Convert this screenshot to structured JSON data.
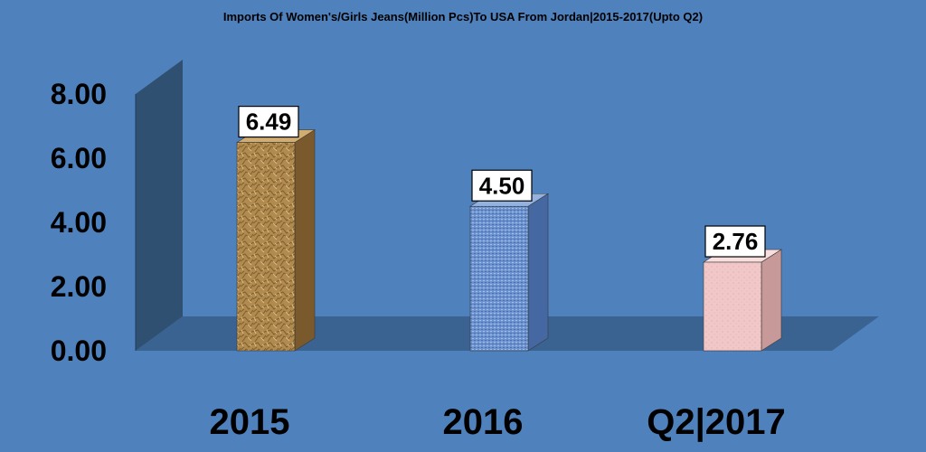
{
  "chart_data": {
    "type": "bar",
    "title": "Imports Of Women's/Girls Jeans(Million Pcs)To USA From Jordan|2015-2017(Upto Q2)",
    "categories": [
      "2015",
      "2016",
      "Q2|2017"
    ],
    "values": [
      6.49,
      4.5,
      2.76
    ],
    "data_labels": [
      "6.49",
      "4.50",
      "2.76"
    ],
    "yticks": [
      "0.00",
      "2.00",
      "4.00",
      "6.00",
      "8.00"
    ],
    "ylim": [
      0,
      8
    ],
    "xlabel": "",
    "ylabel": "",
    "grid": false,
    "legend": "none",
    "style": "3d-column"
  },
  "colors": {
    "background": "#4f81bd",
    "wall": "#2f5071",
    "floor": "#3b6392",
    "bars": [
      {
        "front": "#b08a4e",
        "side": "#7a5a2c",
        "top": "#d1ad70"
      },
      {
        "front": "#6d93cf",
        "side": "#4568a3",
        "top": "#93b2e0"
      },
      {
        "front": "#f2c7c7",
        "side": "#c89999",
        "top": "#f8dede"
      }
    ]
  }
}
